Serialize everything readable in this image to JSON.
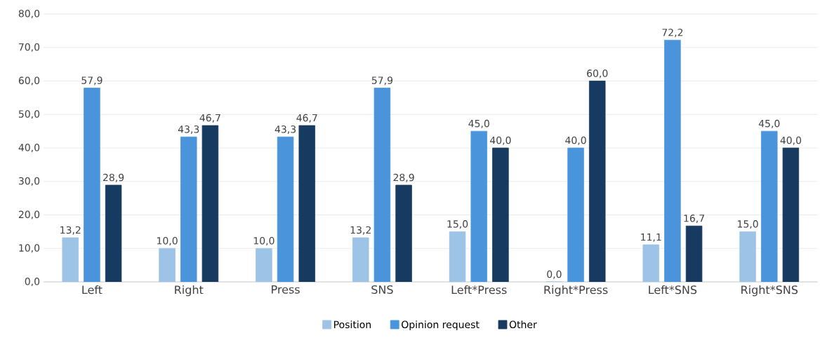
{
  "chart_data": {
    "type": "bar",
    "categories": [
      "Left",
      "Right",
      "Press",
      "SNS",
      "Left*Press",
      "Right*Press",
      "Left*SNS",
      "Right*SNS"
    ],
    "series": [
      {
        "name": "Position",
        "color": "#9dc3e6",
        "values": [
          13.2,
          10.0,
          10.0,
          13.2,
          15.0,
          0.0,
          11.1,
          15.0
        ],
        "value_labels": [
          "13,2",
          "10,0",
          "10,0",
          "13,2",
          "15,0",
          "0,0",
          "11,1",
          "15,0"
        ]
      },
      {
        "name": "Opinion request",
        "color": "#4a94dc",
        "values": [
          57.9,
          43.3,
          43.3,
          57.9,
          45.0,
          40.0,
          72.2,
          45.0
        ],
        "value_labels": [
          "57,9",
          "43,3",
          "43,3",
          "57,9",
          "45,0",
          "40,0",
          "72,2",
          "45,0"
        ]
      },
      {
        "name": "Other",
        "color": "#163a60",
        "values": [
          28.9,
          46.7,
          46.7,
          28.9,
          40.0,
          60.0,
          16.7,
          40.0
        ],
        "value_labels": [
          "28,9",
          "46,7",
          "46,7",
          "28,9",
          "40,0",
          "60,0",
          "16,7",
          "40,0"
        ]
      }
    ],
    "ylim": [
      0,
      80
    ],
    "yticks": [
      {
        "value": 0,
        "label": "0,0"
      },
      {
        "value": 10,
        "label": "10,0"
      },
      {
        "value": 20,
        "label": "20,0"
      },
      {
        "value": 30,
        "label": "30,0"
      },
      {
        "value": 40,
        "label": "40,0"
      },
      {
        "value": 50,
        "label": "50,0"
      },
      {
        "value": 60,
        "label": "60,0"
      },
      {
        "value": 70,
        "label": "70,0"
      },
      {
        "value": 80,
        "label": "80,0"
      }
    ],
    "grid": "y",
    "legend": "bottom"
  }
}
